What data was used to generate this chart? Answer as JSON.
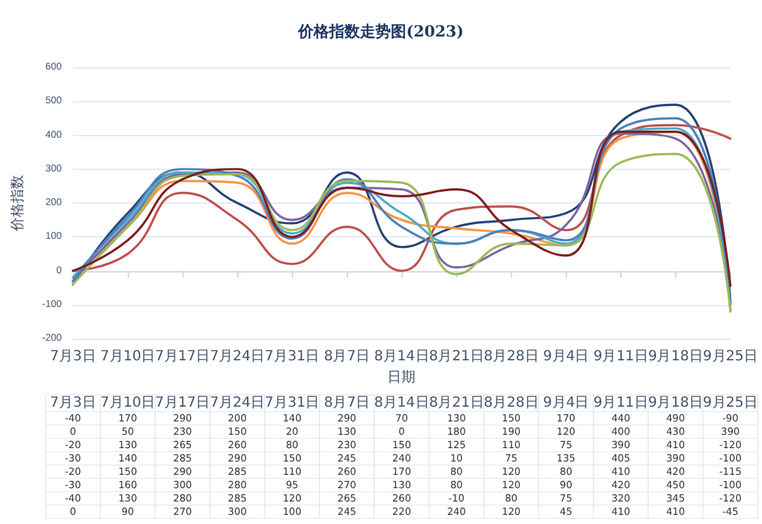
{
  "chart_data": {
    "type": "line",
    "title": "价格指数走势图(2023)",
    "xlabel": "日期",
    "ylabel": "价格指数",
    "categories": [
      "7月3日",
      "7月10日",
      "7月17日",
      "7月24日",
      "7月31日",
      "8月7日",
      "8月14日",
      "8月21日",
      "8月28日",
      "9月4日",
      "9月11日",
      "9月18日",
      "9月25日"
    ],
    "ylim": [
      -200,
      600
    ],
    "yticks": [
      -200,
      -100,
      0,
      100,
      200,
      300,
      400,
      500,
      600
    ],
    "grid": "y",
    "marker": "none",
    "line_style": "solid",
    "data_labels": true,
    "series": [
      {
        "color": "#264478",
        "values": [
          -40,
          170,
          290,
          200,
          140,
          290,
          70,
          130,
          150,
          170,
          440,
          490,
          -90
        ]
      },
      {
        "color": "#c0504d",
        "values": [
          0,
          50,
          230,
          150,
          20,
          130,
          0,
          180,
          190,
          120,
          400,
          430,
          390
        ]
      },
      {
        "color": "#f79646",
        "values": [
          -20,
          130,
          265,
          260,
          80,
          230,
          150,
          125,
          110,
          75,
          390,
          410,
          -120
        ]
      },
      {
        "color": "#8064a2",
        "values": [
          -30,
          140,
          285,
          290,
          150,
          245,
          240,
          10,
          75,
          135,
          405,
          390,
          -100
        ]
      },
      {
        "color": "#4bacc6",
        "values": [
          -20,
          150,
          290,
          285,
          110,
          260,
          170,
          80,
          120,
          80,
          410,
          420,
          -115
        ]
      },
      {
        "color": "#4f81bd",
        "values": [
          -30,
          160,
          300,
          280,
          95,
          270,
          130,
          80,
          120,
          90,
          420,
          450,
          -100
        ]
      },
      {
        "color": "#9bbb59",
        "values": [
          -40,
          130,
          280,
          285,
          120,
          265,
          260,
          -10,
          80,
          75,
          320,
          345,
          -120
        ]
      },
      {
        "color": "#7f1f1f",
        "values": [
          0,
          90,
          270,
          300,
          100,
          245,
          220,
          240,
          120,
          45,
          410,
          410,
          -45
        ]
      }
    ]
  }
}
